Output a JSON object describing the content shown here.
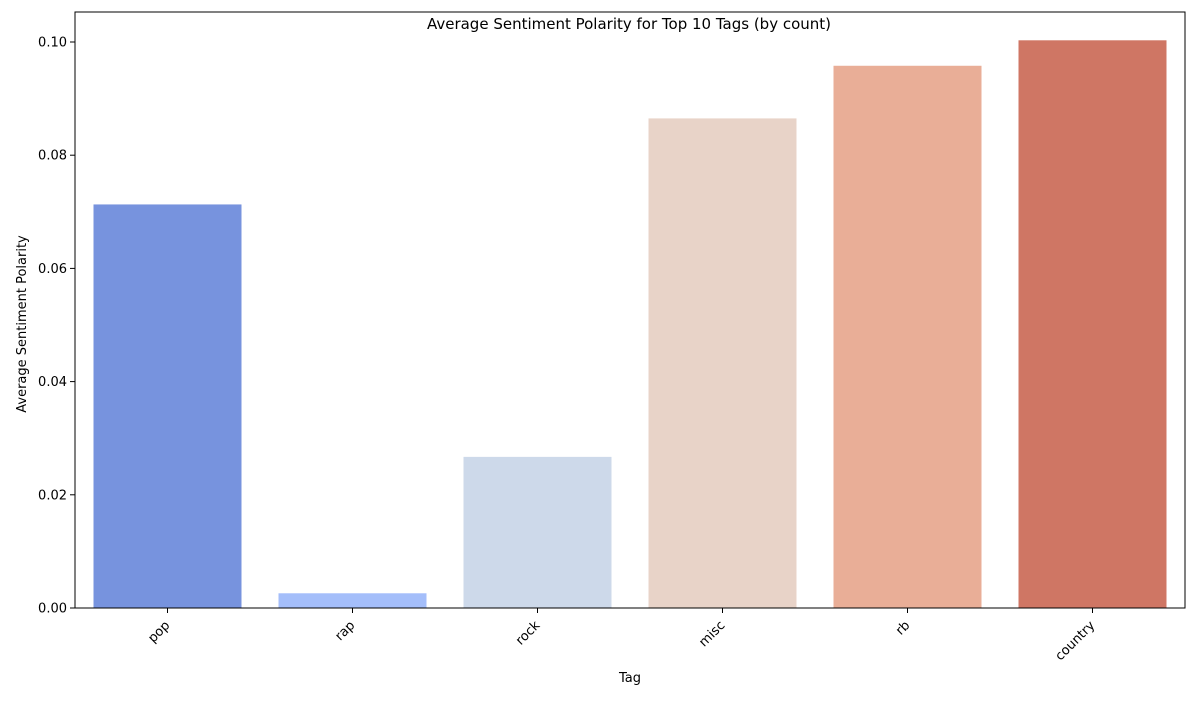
{
  "chart_data": {
    "type": "bar",
    "title": "Average Sentiment Polarity for Top 10 Tags (by count)",
    "xlabel": "Tag",
    "ylabel": "Average Sentiment Polarity",
    "categories": [
      "pop",
      "rap",
      "rock",
      "misc",
      "rb",
      "country"
    ],
    "values": [
      0.0713,
      0.0026,
      0.0267,
      0.0865,
      0.0958,
      0.1003
    ],
    "ylim": [
      0,
      0.1053
    ],
    "yticks": [
      0.0,
      0.02,
      0.04,
      0.06,
      0.08,
      0.1
    ],
    "ytick_labels": [
      "0.00",
      "0.02",
      "0.04",
      "0.06",
      "0.08",
      "0.10"
    ],
    "colors": [
      "#7793de",
      "#a4befa",
      "#cdd9ea",
      "#e8d3c8",
      "#e9ae97",
      "#cf7664"
    ],
    "grid": false,
    "legend": "none",
    "xtick_rotation_deg": -45
  }
}
